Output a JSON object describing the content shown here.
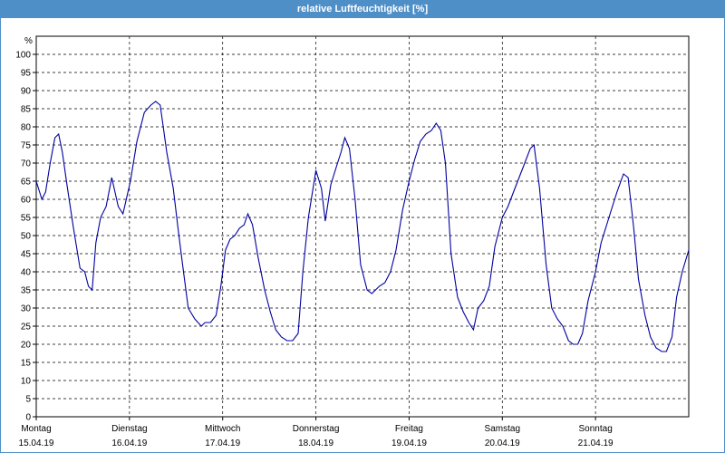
{
  "window": {
    "title": "relative Luftfeuchtigkeit [%]"
  },
  "colors": {
    "title_bar": "#4f8fc8",
    "line": "#0000a0",
    "grid": "#000000"
  },
  "chart_data": {
    "type": "line",
    "title": "relative Luftfeuchtigkeit [%]",
    "ylabel": "%",
    "ylim": [
      0,
      105
    ],
    "yticks": [
      0,
      5,
      10,
      15,
      20,
      25,
      30,
      35,
      40,
      45,
      50,
      55,
      60,
      65,
      70,
      75,
      80,
      85,
      90,
      95,
      100
    ],
    "xlim": [
      0,
      7
    ],
    "xlabel_unit": "days from Montag 15.04.19 00:00",
    "grid": "dashed",
    "x_ticks": [
      {
        "day": "Montag",
        "date": "15.04.19"
      },
      {
        "day": "Dienstag",
        "date": "16.04.19"
      },
      {
        "day": "Mittwoch",
        "date": "17.04.19"
      },
      {
        "day": "Donnerstag",
        "date": "18.04.19"
      },
      {
        "day": "Freitag",
        "date": "19.04.19"
      },
      {
        "day": "Samstag",
        "date": "20.04.19"
      },
      {
        "day": "Sonntag",
        "date": "21.04.19"
      }
    ],
    "series": [
      {
        "points": [
          [
            0.0,
            65
          ],
          [
            0.06,
            60
          ],
          [
            0.1,
            62
          ],
          [
            0.15,
            70
          ],
          [
            0.2,
            77
          ],
          [
            0.24,
            78
          ],
          [
            0.28,
            73
          ],
          [
            0.33,
            64
          ],
          [
            0.4,
            52
          ],
          [
            0.47,
            41
          ],
          [
            0.52,
            40
          ],
          [
            0.56,
            36
          ],
          [
            0.6,
            35
          ],
          [
            0.64,
            48
          ],
          [
            0.69,
            55
          ],
          [
            0.75,
            58
          ],
          [
            0.81,
            66
          ],
          [
            0.88,
            58
          ],
          [
            0.93,
            56
          ],
          [
            1.01,
            65
          ],
          [
            1.08,
            76
          ],
          [
            1.16,
            84
          ],
          [
            1.23,
            86
          ],
          [
            1.28,
            87
          ],
          [
            1.33,
            86
          ],
          [
            1.4,
            73
          ],
          [
            1.47,
            63
          ],
          [
            1.53,
            50
          ],
          [
            1.58,
            40
          ],
          [
            1.63,
            30
          ],
          [
            1.7,
            27
          ],
          [
            1.77,
            25
          ],
          [
            1.81,
            26
          ],
          [
            1.87,
            26
          ],
          [
            1.93,
            28
          ],
          [
            1.98,
            36
          ],
          [
            2.03,
            46
          ],
          [
            2.08,
            49
          ],
          [
            2.13,
            50
          ],
          [
            2.18,
            52
          ],
          [
            2.23,
            53
          ],
          [
            2.27,
            56
          ],
          [
            2.32,
            53
          ],
          [
            2.38,
            44
          ],
          [
            2.45,
            35
          ],
          [
            2.51,
            29
          ],
          [
            2.57,
            24
          ],
          [
            2.63,
            22
          ],
          [
            2.69,
            21
          ],
          [
            2.75,
            21
          ],
          [
            2.81,
            23
          ],
          [
            2.86,
            40
          ],
          [
            2.92,
            55
          ],
          [
            3.0,
            68
          ],
          [
            3.06,
            63
          ],
          [
            3.1,
            54
          ],
          [
            3.16,
            64
          ],
          [
            3.22,
            69
          ],
          [
            3.27,
            73
          ],
          [
            3.31,
            77
          ],
          [
            3.36,
            74
          ],
          [
            3.42,
            60
          ],
          [
            3.48,
            42
          ],
          [
            3.55,
            35
          ],
          [
            3.6,
            34
          ],
          [
            3.64,
            35
          ],
          [
            3.68,
            36
          ],
          [
            3.74,
            37
          ],
          [
            3.8,
            40
          ],
          [
            3.86,
            46
          ],
          [
            3.93,
            57
          ],
          [
            4.0,
            65
          ],
          [
            4.06,
            71
          ],
          [
            4.12,
            76
          ],
          [
            4.18,
            78
          ],
          [
            4.24,
            79
          ],
          [
            4.29,
            81
          ],
          [
            4.34,
            79
          ],
          [
            4.39,
            70
          ],
          [
            4.45,
            45
          ],
          [
            4.52,
            33
          ],
          [
            4.58,
            29
          ],
          [
            4.64,
            26
          ],
          [
            4.69,
            24
          ],
          [
            4.74,
            30
          ],
          [
            4.8,
            32
          ],
          [
            4.86,
            36
          ],
          [
            4.92,
            47
          ],
          [
            5.0,
            55
          ],
          [
            5.06,
            58
          ],
          [
            5.12,
            62
          ],
          [
            5.18,
            66
          ],
          [
            5.24,
            70
          ],
          [
            5.3,
            74
          ],
          [
            5.34,
            75
          ],
          [
            5.4,
            63
          ],
          [
            5.47,
            42
          ],
          [
            5.53,
            30
          ],
          [
            5.59,
            27
          ],
          [
            5.65,
            25
          ],
          [
            5.71,
            21
          ],
          [
            5.76,
            20
          ],
          [
            5.81,
            20
          ],
          [
            5.86,
            23
          ],
          [
            5.92,
            32
          ],
          [
            6.0,
            40
          ],
          [
            6.06,
            48
          ],
          [
            6.12,
            53
          ],
          [
            6.18,
            58
          ],
          [
            6.23,
            62
          ],
          [
            6.3,
            67
          ],
          [
            6.35,
            66
          ],
          [
            6.41,
            52
          ],
          [
            6.46,
            38
          ],
          [
            6.53,
            28
          ],
          [
            6.59,
            22
          ],
          [
            6.65,
            19
          ],
          [
            6.71,
            18
          ],
          [
            6.76,
            18
          ],
          [
            6.82,
            22
          ],
          [
            6.87,
            33
          ],
          [
            6.93,
            40
          ],
          [
            7.0,
            46
          ]
        ]
      }
    ]
  }
}
